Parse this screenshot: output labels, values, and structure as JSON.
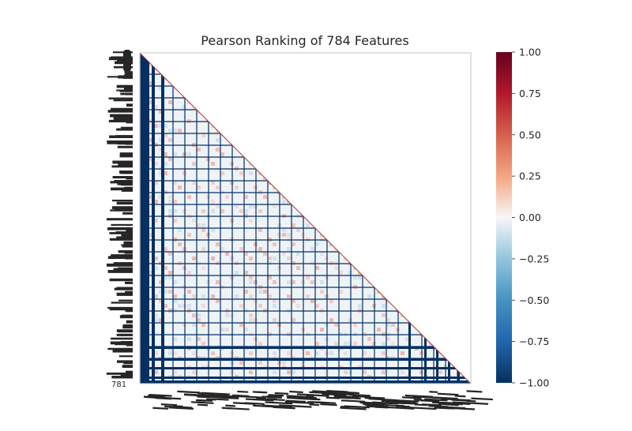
{
  "chart_data": {
    "type": "heatmap",
    "title": "Pearson Ranking of 784 Features",
    "n_features": 784,
    "matrix_shape": "lower-triangular",
    "colormap": "RdBu_r",
    "colors": {
      "min": "#053061",
      "mid": "#f7f7f7",
      "max": "#67001f"
    },
    "value_range": [
      -1.0,
      1.0
    ],
    "colorbar_ticks": [
      "1.00",
      "0.75",
      "0.50",
      "0.25",
      "0.00",
      "−0.25",
      "−0.50",
      "−0.75",
      "−1.00"
    ],
    "colorbar_tick_values": [
      1.0,
      0.75,
      0.5,
      0.25,
      0.0,
      -0.25,
      -0.5,
      -0.75,
      -1.0
    ],
    "y_axis_last_visible_tick": "781",
    "grid": false,
    "legend": "colorbar right"
  }
}
